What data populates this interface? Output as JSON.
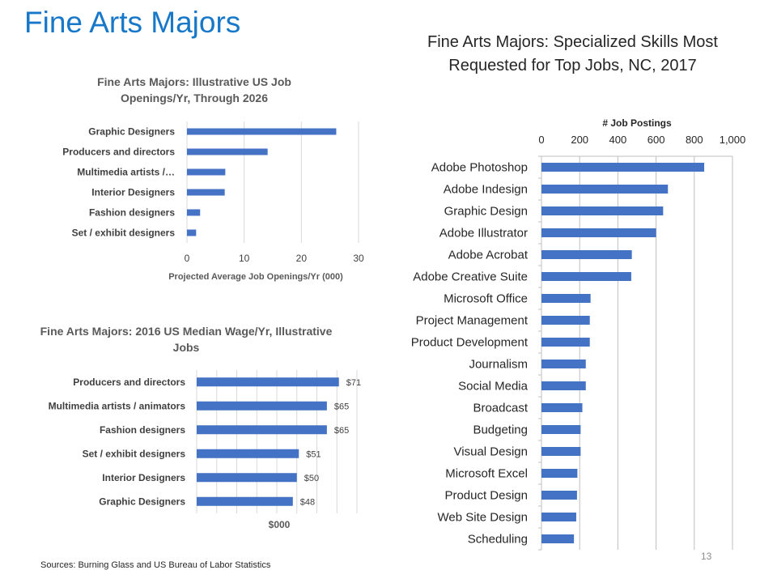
{
  "slide": {
    "title": "Fine Arts Majors",
    "sources": "Sources: Burning Glass and US Bureau of Labor Statistics",
    "page_number": "13",
    "colors": {
      "title": "#1777c8",
      "bar": "#4472c4",
      "grid": "#d9d9d9"
    }
  },
  "chart_data": [
    {
      "id": "job-openings",
      "type": "bar",
      "orientation": "horizontal",
      "title": "Fine Arts Majors: Illustrative US Job Openings/Yr, Through 2026",
      "xlabel": "Projected Average Job Openings/Yr (000)",
      "ylabel": "",
      "categories": [
        "Graphic Designers",
        "Producers and directors",
        "Multimedia artists /…",
        "Interior Designers",
        "Fashion designers",
        "Set / exhibit designers"
      ],
      "values": [
        26.1,
        14.1,
        6.7,
        6.6,
        2.3,
        1.6
      ],
      "xlim": [
        0,
        30
      ],
      "ticks": [
        0,
        10,
        20,
        30
      ],
      "tick_labels": [
        "0",
        "10",
        "20",
        "30"
      ],
      "grid": true,
      "legend": "none"
    },
    {
      "id": "median-wage",
      "type": "bar",
      "orientation": "horizontal",
      "title": "Fine Arts Majors: 2016 US Median Wage/Yr, Illustrative Jobs",
      "xlabel": "$000",
      "ylabel": "",
      "categories": [
        "Producers and directors",
        "Multimedia artists / animators",
        "Fashion designers",
        "Set / exhibit designers",
        "Interior Designers",
        "Graphic Designers"
      ],
      "values": [
        71,
        65,
        65,
        51,
        50,
        48
      ],
      "data_labels": [
        "$71",
        "$65",
        "$65",
        "$51",
        "$50",
        "$48"
      ],
      "xlim": [
        0,
        80
      ],
      "grid": true,
      "legend": "none"
    },
    {
      "id": "specialized-skills",
      "type": "bar",
      "orientation": "horizontal",
      "title": "Fine Arts Majors: Specialized Skills Most Requested for Top Jobs, NC, 2017",
      "xlabel": "# Job Postings",
      "x_axis_position": "top",
      "ylabel": "",
      "categories": [
        "Adobe Photoshop",
        "Adobe Indesign",
        "Graphic Design",
        "Adobe Illustrator",
        "Adobe Acrobat",
        "Adobe Creative Suite",
        "Microsoft Office",
        "Project Management",
        "Product Development",
        "Journalism",
        "Social Media",
        "Broadcast",
        "Budgeting",
        "Visual Design",
        "Microsoft Excel",
        "Product Design",
        "Web Site Design",
        "Scheduling"
      ],
      "values": [
        852,
        662,
        637,
        600,
        473,
        470,
        257,
        253,
        253,
        232,
        232,
        214,
        205,
        205,
        188,
        186,
        182,
        170
      ],
      "xlim": [
        0,
        1000
      ],
      "ticks": [
        0,
        200,
        400,
        600,
        800,
        1000
      ],
      "tick_labels": [
        "0",
        "200",
        "400",
        "600",
        "800",
        "1,000"
      ],
      "grid": true,
      "legend": "none"
    }
  ]
}
